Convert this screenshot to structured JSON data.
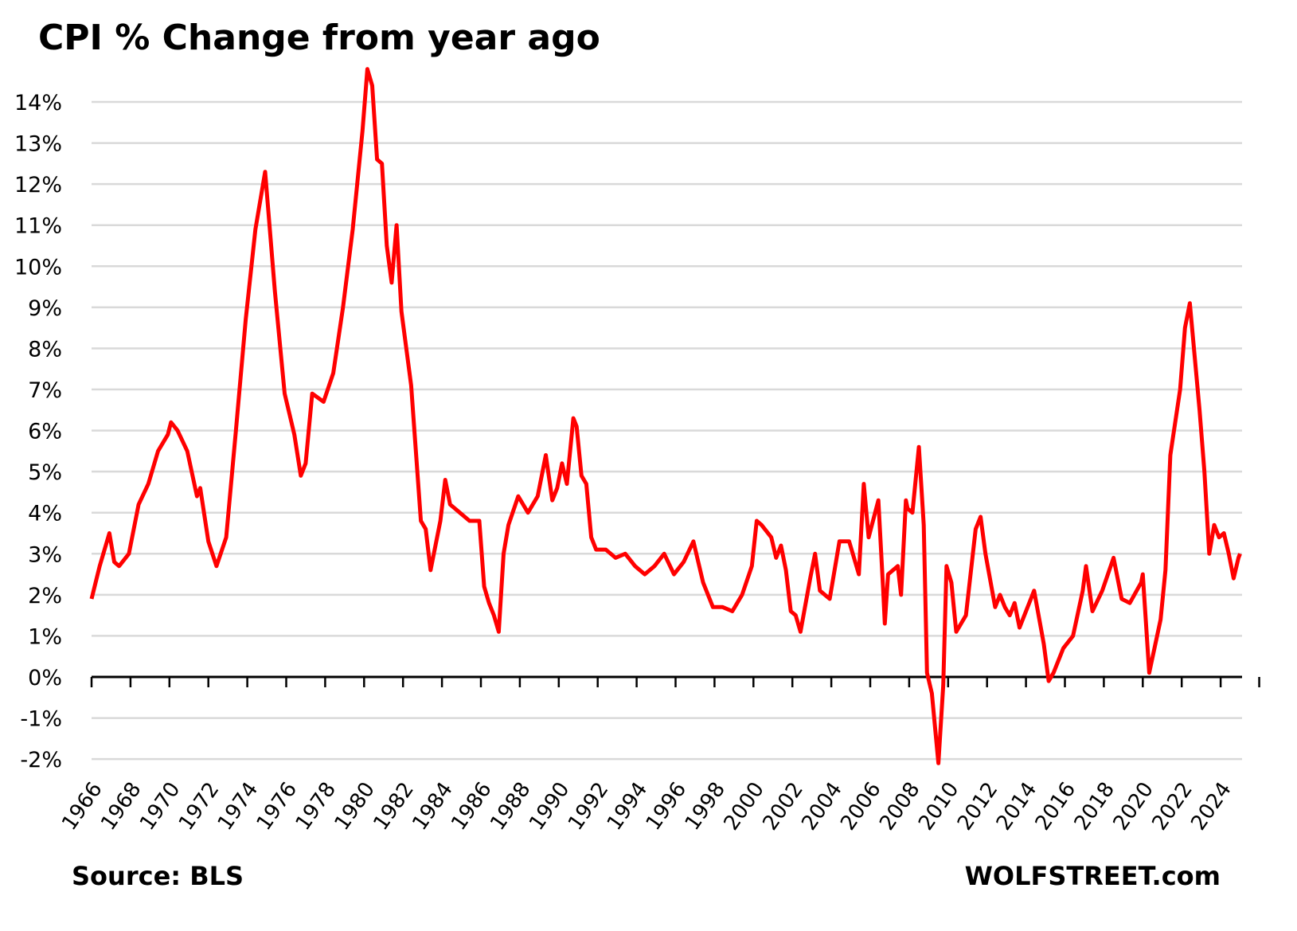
{
  "chart_data": {
    "type": "line",
    "title": "CPI % Change from year ago",
    "xlabel": "",
    "ylabel": "",
    "ylim": [
      -2,
      14
    ],
    "y_tick_labels": [
      "-2%",
      "-1%",
      "0%",
      "1%",
      "2%",
      "3%",
      "4%",
      "5%",
      "6%",
      "7%",
      "8%",
      "9%",
      "10%",
      "11%",
      "12%",
      "13%",
      "14%"
    ],
    "x_tick_labels": [
      "1966",
      "1968",
      "1970",
      "1972",
      "1974",
      "1976",
      "1978",
      "1980",
      "1982",
      "1984",
      "1986",
      "1988",
      "1990",
      "1992",
      "1994",
      "1996",
      "1998",
      "2000",
      "2002",
      "2004",
      "2006",
      "2008",
      "2010",
      "2012",
      "2014",
      "2016",
      "2018",
      "2020",
      "2022",
      "2024"
    ],
    "xlim": [
      "1966-01",
      "2025-01"
    ],
    "grid": true,
    "line_color": "#ff0000",
    "series": [
      {
        "points": [
          [
            "1966-01",
            1.9
          ],
          [
            "1966-06",
            2.7
          ],
          [
            "1966-12",
            3.5
          ],
          [
            "1967-03",
            2.8
          ],
          [
            "1967-06",
            2.7
          ],
          [
            "1967-12",
            3.0
          ],
          [
            "1968-06",
            4.2
          ],
          [
            "1968-12",
            4.7
          ],
          [
            "1969-06",
            5.5
          ],
          [
            "1969-12",
            5.9
          ],
          [
            "1970-02",
            6.2
          ],
          [
            "1970-06",
            6.0
          ],
          [
            "1970-12",
            5.5
          ],
          [
            "1971-06",
            4.4
          ],
          [
            "1971-08",
            4.6
          ],
          [
            "1972-01",
            3.3
          ],
          [
            "1972-06",
            2.7
          ],
          [
            "1972-12",
            3.4
          ],
          [
            "1973-06",
            6.0
          ],
          [
            "1973-12",
            8.7
          ],
          [
            "1974-06",
            10.9
          ],
          [
            "1974-12",
            12.3
          ],
          [
            "1975-06",
            9.4
          ],
          [
            "1975-12",
            6.9
          ],
          [
            "1976-06",
            5.9
          ],
          [
            "1976-10",
            4.9
          ],
          [
            "1977-01",
            5.2
          ],
          [
            "1977-05",
            6.9
          ],
          [
            "1977-12",
            6.7
          ],
          [
            "1978-06",
            7.4
          ],
          [
            "1978-12",
            9.0
          ],
          [
            "1979-06",
            10.9
          ],
          [
            "1979-12",
            13.3
          ],
          [
            "1980-03",
            14.8
          ],
          [
            "1980-06",
            14.4
          ],
          [
            "1980-09",
            12.6
          ],
          [
            "1980-12",
            12.5
          ],
          [
            "1981-03",
            10.5
          ],
          [
            "1981-06",
            9.6
          ],
          [
            "1981-09",
            11.0
          ],
          [
            "1981-12",
            8.9
          ],
          [
            "1982-06",
            7.1
          ],
          [
            "1982-12",
            3.8
          ],
          [
            "1983-03",
            3.6
          ],
          [
            "1983-06",
            2.6
          ],
          [
            "1983-12",
            3.8
          ],
          [
            "1984-03",
            4.8
          ],
          [
            "1984-06",
            4.2
          ],
          [
            "1984-12",
            4.0
          ],
          [
            "1985-06",
            3.8
          ],
          [
            "1985-12",
            3.8
          ],
          [
            "1986-03",
            2.2
          ],
          [
            "1986-06",
            1.8
          ],
          [
            "1986-09",
            1.5
          ],
          [
            "1986-12",
            1.1
          ],
          [
            "1987-03",
            3.0
          ],
          [
            "1987-06",
            3.7
          ],
          [
            "1987-12",
            4.4
          ],
          [
            "1988-06",
            4.0
          ],
          [
            "1988-12",
            4.4
          ],
          [
            "1989-05",
            5.4
          ],
          [
            "1989-09",
            4.3
          ],
          [
            "1989-12",
            4.6
          ],
          [
            "1990-03",
            5.2
          ],
          [
            "1990-06",
            4.7
          ],
          [
            "1990-10",
            6.3
          ],
          [
            "1990-12",
            6.1
          ],
          [
            "1991-03",
            4.9
          ],
          [
            "1991-06",
            4.7
          ],
          [
            "1991-09",
            3.4
          ],
          [
            "1991-12",
            3.1
          ],
          [
            "1992-06",
            3.1
          ],
          [
            "1992-12",
            2.9
          ],
          [
            "1993-06",
            3.0
          ],
          [
            "1993-12",
            2.7
          ],
          [
            "1994-06",
            2.5
          ],
          [
            "1994-12",
            2.7
          ],
          [
            "1995-06",
            3.0
          ],
          [
            "1995-12",
            2.5
          ],
          [
            "1996-06",
            2.8
          ],
          [
            "1996-12",
            3.3
          ],
          [
            "1997-06",
            2.3
          ],
          [
            "1997-12",
            1.7
          ],
          [
            "1998-06",
            1.7
          ],
          [
            "1998-12",
            1.6
          ],
          [
            "1999-06",
            2.0
          ],
          [
            "1999-12",
            2.7
          ],
          [
            "2000-03",
            3.8
          ],
          [
            "2000-06",
            3.7
          ],
          [
            "2000-12",
            3.4
          ],
          [
            "2001-03",
            2.9
          ],
          [
            "2001-06",
            3.2
          ],
          [
            "2001-09",
            2.6
          ],
          [
            "2001-12",
            1.6
          ],
          [
            "2002-03",
            1.5
          ],
          [
            "2002-06",
            1.1
          ],
          [
            "2002-12",
            2.4
          ],
          [
            "2003-03",
            3.0
          ],
          [
            "2003-06",
            2.1
          ],
          [
            "2003-12",
            1.9
          ],
          [
            "2004-06",
            3.3
          ],
          [
            "2004-12",
            3.3
          ],
          [
            "2005-06",
            2.5
          ],
          [
            "2005-09",
            4.7
          ],
          [
            "2005-12",
            3.4
          ],
          [
            "2006-06",
            4.3
          ],
          [
            "2006-09",
            2.1
          ],
          [
            "2006-10",
            1.3
          ],
          [
            "2006-12",
            2.5
          ],
          [
            "2007-06",
            2.7
          ],
          [
            "2007-08",
            2.0
          ],
          [
            "2007-11",
            4.3
          ],
          [
            "2007-12",
            4.1
          ],
          [
            "2008-03",
            4.0
          ],
          [
            "2008-07",
            5.6
          ],
          [
            "2008-10",
            3.7
          ],
          [
            "2008-12",
            0.1
          ],
          [
            "2009-03",
            -0.4
          ],
          [
            "2009-07",
            -2.1
          ],
          [
            "2009-10",
            -0.2
          ],
          [
            "2009-12",
            2.7
          ],
          [
            "2010-03",
            2.3
          ],
          [
            "2010-06",
            1.1
          ],
          [
            "2010-12",
            1.5
          ],
          [
            "2011-06",
            3.6
          ],
          [
            "2011-09",
            3.9
          ],
          [
            "2011-12",
            3.0
          ],
          [
            "2012-06",
            1.7
          ],
          [
            "2012-09",
            2.0
          ],
          [
            "2012-12",
            1.7
          ],
          [
            "2013-03",
            1.5
          ],
          [
            "2013-06",
            1.8
          ],
          [
            "2013-09",
            1.2
          ],
          [
            "2013-12",
            1.5
          ],
          [
            "2014-06",
            2.1
          ],
          [
            "2014-12",
            0.8
          ],
          [
            "2015-03",
            -0.1
          ],
          [
            "2015-06",
            0.1
          ],
          [
            "2015-12",
            0.7
          ],
          [
            "2016-06",
            1.0
          ],
          [
            "2016-12",
            2.1
          ],
          [
            "2017-02",
            2.7
          ],
          [
            "2017-06",
            1.6
          ],
          [
            "2017-12",
            2.1
          ],
          [
            "2018-07",
            2.9
          ],
          [
            "2018-12",
            1.9
          ],
          [
            "2019-05",
            1.8
          ],
          [
            "2019-12",
            2.3
          ],
          [
            "2020-01",
            2.5
          ],
          [
            "2020-05",
            0.1
          ],
          [
            "2020-12",
            1.4
          ],
          [
            "2021-03",
            2.6
          ],
          [
            "2021-06",
            5.4
          ],
          [
            "2021-12",
            7.0
          ],
          [
            "2022-03",
            8.5
          ],
          [
            "2022-06",
            9.1
          ],
          [
            "2022-12",
            6.5
          ],
          [
            "2023-03",
            5.0
          ],
          [
            "2023-06",
            3.0
          ],
          [
            "2023-09",
            3.7
          ],
          [
            "2023-12",
            3.4
          ],
          [
            "2024-03",
            3.5
          ],
          [
            "2024-06",
            3.0
          ],
          [
            "2024-09",
            2.4
          ],
          [
            "2024-12",
            2.9
          ],
          [
            "2025-01",
            3.0
          ]
        ]
      }
    ]
  },
  "footer": {
    "source": "Source: BLS",
    "brand": "WOLFSTREET.com"
  }
}
